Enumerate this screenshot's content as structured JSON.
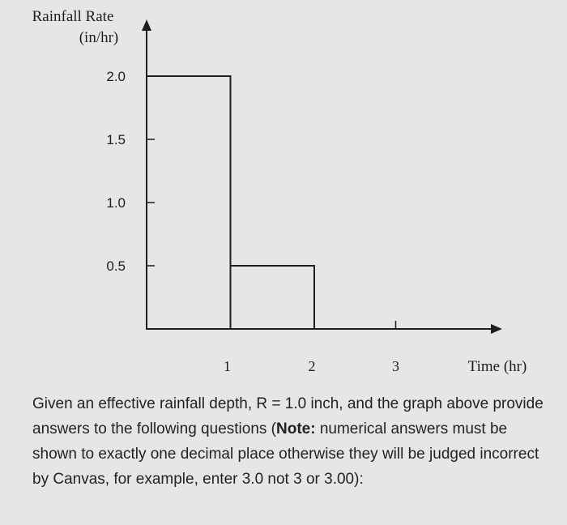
{
  "chart_data": {
    "type": "bar",
    "ylabel_line1": "Rainfall Rate",
    "ylabel_line2": "(in/hr)",
    "xlabel": "Time (hr)",
    "xlim": [
      0,
      4.25
    ],
    "ylim": [
      0,
      2.0
    ],
    "yticks": [
      "2.0",
      "1.5",
      "1.0",
      "0.5"
    ],
    "ytick_values": [
      2.0,
      1.5,
      1.0,
      0.5
    ],
    "xticks": [
      "1",
      "2",
      "3"
    ],
    "xtick_values": [
      1,
      2,
      3
    ],
    "bars": [
      {
        "x_start": 0,
        "x_end": 1,
        "value": 2.0
      },
      {
        "x_start": 1,
        "x_end": 2,
        "value": 0.5
      }
    ],
    "grid": false
  },
  "question": {
    "part1": "Given an effective rainfall depth, R = 1.0 inch, and the graph above provide answers to the following questions (",
    "note_label": "Note:",
    "part2": " numerical answers must be shown to exactly one decimal place otherwise they will be judged incorrect by Canvas, for example, enter 3.0 not 3 or 3.00):"
  }
}
